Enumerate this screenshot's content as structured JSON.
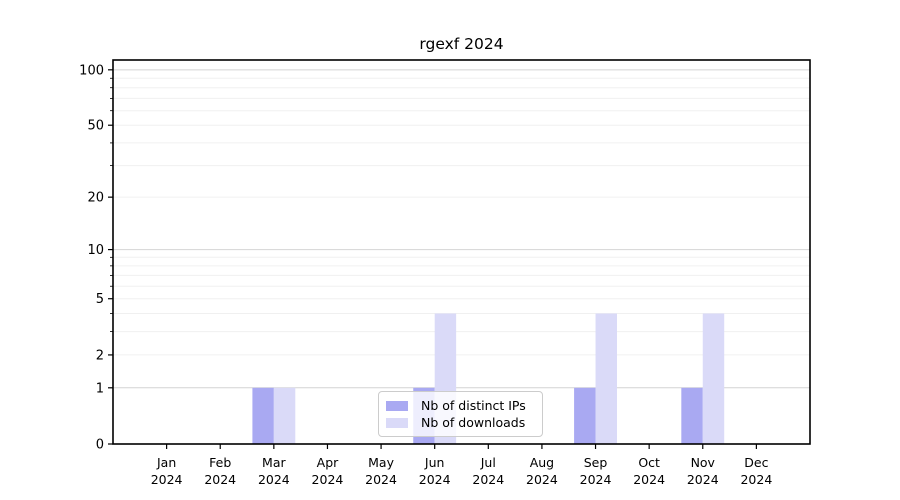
{
  "chart_data": {
    "type": "bar",
    "title": "rgexf 2024",
    "categories": [
      "Jan",
      "Feb",
      "Mar",
      "Apr",
      "May",
      "Jun",
      "Jul",
      "Aug",
      "Sep",
      "Oct",
      "Nov",
      "Dec"
    ],
    "year_label": "2024",
    "series": [
      {
        "name": "Nb of distinct IPs",
        "color": "#a9a9f2",
        "values": [
          0,
          0,
          1,
          0,
          0,
          1,
          0,
          0,
          1,
          0,
          1,
          0
        ]
      },
      {
        "name": "Nb of downloads",
        "color": "#dadaf8",
        "values": [
          0,
          0,
          1,
          0,
          0,
          4,
          0,
          0,
          4,
          0,
          4,
          0
        ]
      }
    ],
    "y_ticks": [
      "0",
      "1",
      "2",
      "5",
      "10",
      "20",
      "50",
      "100"
    ],
    "y_tick_values": [
      0,
      1,
      2,
      5,
      10,
      20,
      50,
      100
    ],
    "y_scale": "log10(1+x)",
    "ylim": [
      0,
      113
    ],
    "xlabel": "",
    "ylabel": "",
    "grid": true,
    "legend_position": "lower center"
  }
}
